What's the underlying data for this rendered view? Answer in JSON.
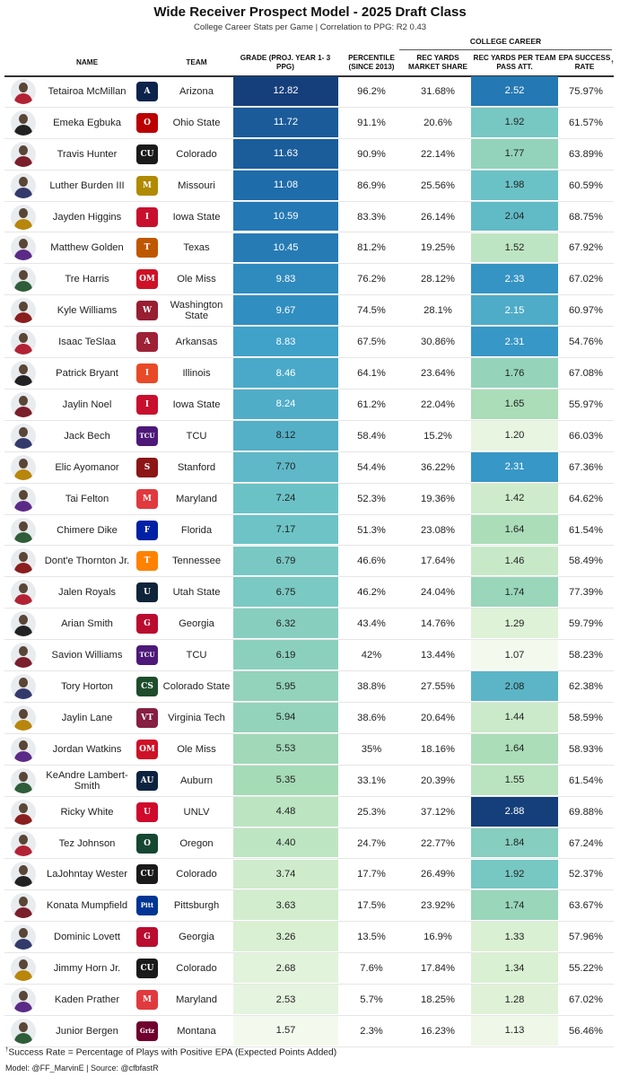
{
  "title": "Wide Receiver Prospect Model - 2025 Draft Class",
  "subtitle": "College Career Stats per Game | Correlation to PPG: R2 0.43",
  "spanner": "COLLEGE CAREER",
  "headers": {
    "name": "NAME",
    "team": "TEAM",
    "grade": "GRADE (PROJ. YEAR 1- 3 PPG)",
    "percentile": "PERCENTILE (SINCE 2013)",
    "share": "REC YARDS MARKET SHARE",
    "ypa": "REC YARDS PER TEAM PASS ATT.",
    "epa": "EPA SUCCESS RATE",
    "epa_mark": "†"
  },
  "footnote": {
    "mark": "†",
    "text": "Success Rate = Percentage of Plays with Positive EPA (Expected Points Added)"
  },
  "credit": "Model: @FF_MarvinE | Source: @cfbfastR",
  "colors": {
    "scale": [
      "#f4f9ee",
      "#d6efcf",
      "#a6dbb6",
      "#6cc3c6",
      "#3a9cc9",
      "#1f6fae",
      "#153f7a"
    ]
  },
  "chart_data": {
    "type": "table",
    "columns": [
      "NAME",
      "TEAM",
      "GRADE (PROJ. YEAR 1- 3 PPG)",
      "PERCENTILE (SINCE 2013)",
      "REC YARDS MARKET SHARE",
      "REC YARDS PER TEAM PASS ATT.",
      "EPA SUCCESS RATE"
    ],
    "rows": [
      {
        "name": "Tetairoa McMillan",
        "team": "Arizona",
        "logo": "arizona-logo",
        "logo_text": "A",
        "logo_color": "#0c234b",
        "grade": "12.82",
        "percentile": "96.2%",
        "share": "31.68%",
        "ypa": "2.52",
        "epa": "75.97%"
      },
      {
        "name": "Emeka Egbuka",
        "team": "Ohio State",
        "logo": "ohio-state-logo",
        "logo_text": "O",
        "logo_color": "#bb0000",
        "grade": "11.72",
        "percentile": "91.1%",
        "share": "20.6%",
        "ypa": "1.92",
        "epa": "61.57%"
      },
      {
        "name": "Travis Hunter",
        "team": "Colorado",
        "logo": "colorado-logo",
        "logo_text": "CU",
        "logo_color": "#1a1a1a",
        "grade": "11.63",
        "percentile": "90.9%",
        "share": "22.14%",
        "ypa": "1.77",
        "epa": "63.89%"
      },
      {
        "name": "Luther Burden III",
        "team": "Missouri",
        "logo": "missouri-logo",
        "logo_text": "M",
        "logo_color": "#b08a00",
        "grade": "11.08",
        "percentile": "86.9%",
        "share": "25.56%",
        "ypa": "1.98",
        "epa": "60.59%"
      },
      {
        "name": "Jayden Higgins",
        "team": "Iowa State",
        "logo": "iowa-state-logo",
        "logo_text": "I",
        "logo_color": "#c8102e",
        "grade": "10.59",
        "percentile": "83.3%",
        "share": "26.14%",
        "ypa": "2.04",
        "epa": "68.75%"
      },
      {
        "name": "Matthew Golden",
        "team": "Texas",
        "logo": "texas-logo",
        "logo_text": "T",
        "logo_color": "#bf5700",
        "grade": "10.45",
        "percentile": "81.2%",
        "share": "19.25%",
        "ypa": "1.52",
        "epa": "67.92%"
      },
      {
        "name": "Tre Harris",
        "team": "Ole Miss",
        "logo": "ole-miss-logo",
        "logo_text": "OM",
        "logo_color": "#ce1126",
        "grade": "9.83",
        "percentile": "76.2%",
        "share": "28.12%",
        "ypa": "2.33",
        "epa": "67.02%"
      },
      {
        "name": "Kyle Williams",
        "team": "Washington State",
        "logo": "washington-state-logo",
        "logo_text": "W",
        "logo_color": "#981e32",
        "grade": "9.67",
        "percentile": "74.5%",
        "share": "28.1%",
        "ypa": "2.15",
        "epa": "60.97%"
      },
      {
        "name": "Isaac TeSlaa",
        "team": "Arkansas",
        "logo": "arkansas-logo",
        "logo_text": "A",
        "logo_color": "#9d2235",
        "grade": "8.83",
        "percentile": "67.5%",
        "share": "30.86%",
        "ypa": "2.31",
        "epa": "54.76%"
      },
      {
        "name": "Patrick Bryant",
        "team": "Illinois",
        "logo": "illinois-logo",
        "logo_text": "I",
        "logo_color": "#e84a27",
        "grade": "8.46",
        "percentile": "64.1%",
        "share": "23.64%",
        "ypa": "1.76",
        "epa": "67.08%"
      },
      {
        "name": "Jaylin Noel",
        "team": "Iowa State",
        "logo": "iowa-state-logo",
        "logo_text": "I",
        "logo_color": "#c8102e",
        "grade": "8.24",
        "percentile": "61.2%",
        "share": "22.04%",
        "ypa": "1.65",
        "epa": "55.97%"
      },
      {
        "name": "Jack Bech",
        "team": "TCU",
        "logo": "tcu-logo",
        "logo_text": "TCU",
        "logo_color": "#4d1979",
        "grade": "8.12",
        "percentile": "58.4%",
        "share": "15.2%",
        "ypa": "1.20",
        "epa": "66.03%"
      },
      {
        "name": "Elic Ayomanor",
        "team": "Stanford",
        "logo": "stanford-logo",
        "logo_text": "S",
        "logo_color": "#8c1515",
        "grade": "7.70",
        "percentile": "54.4%",
        "share": "36.22%",
        "ypa": "2.31",
        "epa": "67.36%"
      },
      {
        "name": "Tai Felton",
        "team": "Maryland",
        "logo": "maryland-logo",
        "logo_text": "M",
        "logo_color": "#e03a3e",
        "grade": "7.24",
        "percentile": "52.3%",
        "share": "19.36%",
        "ypa": "1.42",
        "epa": "64.62%"
      },
      {
        "name": "Chimere Dike",
        "team": "Florida",
        "logo": "florida-logo",
        "logo_text": "F",
        "logo_color": "#0021a5",
        "grade": "7.17",
        "percentile": "51.3%",
        "share": "23.08%",
        "ypa": "1.64",
        "epa": "61.54%"
      },
      {
        "name": "Dont'e Thornton Jr.",
        "team": "Tennessee",
        "logo": "tennessee-logo",
        "logo_text": "T",
        "logo_color": "#ff8200",
        "grade": "6.79",
        "percentile": "46.6%",
        "share": "17.64%",
        "ypa": "1.46",
        "epa": "58.49%"
      },
      {
        "name": "Jalen Royals",
        "team": "Utah State",
        "logo": "utah-state-logo",
        "logo_text": "U",
        "logo_color": "#0f2439",
        "grade": "6.75",
        "percentile": "46.2%",
        "share": "24.04%",
        "ypa": "1.74",
        "epa": "77.39%"
      },
      {
        "name": "Arian Smith",
        "team": "Georgia",
        "logo": "georgia-logo",
        "logo_text": "G",
        "logo_color": "#ba0c2f",
        "grade": "6.32",
        "percentile": "43.4%",
        "share": "14.76%",
        "ypa": "1.29",
        "epa": "59.79%"
      },
      {
        "name": "Savion Williams",
        "team": "TCU",
        "logo": "tcu-logo",
        "logo_text": "TCU",
        "logo_color": "#4d1979",
        "grade": "6.19",
        "percentile": "42%",
        "share": "13.44%",
        "ypa": "1.07",
        "epa": "58.23%"
      },
      {
        "name": "Tory Horton",
        "team": "Colorado State",
        "logo": "colorado-state-logo",
        "logo_text": "CS",
        "logo_color": "#1e4d2b",
        "grade": "5.95",
        "percentile": "38.8%",
        "share": "27.55%",
        "ypa": "2.08",
        "epa": "62.38%"
      },
      {
        "name": "Jaylin Lane",
        "team": "Virginia Tech",
        "logo": "virginia-tech-logo",
        "logo_text": "VT",
        "logo_color": "#861f41",
        "grade": "5.94",
        "percentile": "38.6%",
        "share": "20.64%",
        "ypa": "1.44",
        "epa": "58.59%"
      },
      {
        "name": "Jordan Watkins",
        "team": "Ole Miss",
        "logo": "ole-miss-logo",
        "logo_text": "OM",
        "logo_color": "#ce1126",
        "grade": "5.53",
        "percentile": "35%",
        "share": "18.16%",
        "ypa": "1.64",
        "epa": "58.93%"
      },
      {
        "name": "KeAndre Lambert-Smith",
        "team": "Auburn",
        "logo": "auburn-logo",
        "logo_text": "AU",
        "logo_color": "#0c2340",
        "grade": "5.35",
        "percentile": "33.1%",
        "share": "20.39%",
        "ypa": "1.55",
        "epa": "61.54%"
      },
      {
        "name": "Ricky White",
        "team": "UNLV",
        "logo": "unlv-logo",
        "logo_text": "U",
        "logo_color": "#cf0a2c",
        "grade": "4.48",
        "percentile": "25.3%",
        "share": "37.12%",
        "ypa": "2.88",
        "epa": "69.88%"
      },
      {
        "name": "Tez Johnson",
        "team": "Oregon",
        "logo": "oregon-logo",
        "logo_text": "O",
        "logo_color": "#154733",
        "grade": "4.40",
        "percentile": "24.7%",
        "share": "22.77%",
        "ypa": "1.84",
        "epa": "67.24%"
      },
      {
        "name": "LaJohntay Wester",
        "team": "Colorado",
        "logo": "colorado-logo",
        "logo_text": "CU",
        "logo_color": "#1a1a1a",
        "grade": "3.74",
        "percentile": "17.7%",
        "share": "26.49%",
        "ypa": "1.92",
        "epa": "52.37%"
      },
      {
        "name": "Konata Mumpfield",
        "team": "Pittsburgh",
        "logo": "pittsburgh-logo",
        "logo_text": "Pitt",
        "logo_color": "#003594",
        "grade": "3.63",
        "percentile": "17.5%",
        "share": "23.92%",
        "ypa": "1.74",
        "epa": "63.67%"
      },
      {
        "name": "Dominic Lovett",
        "team": "Georgia",
        "logo": "georgia-logo",
        "logo_text": "G",
        "logo_color": "#ba0c2f",
        "grade": "3.26",
        "percentile": "13.5%",
        "share": "16.9%",
        "ypa": "1.33",
        "epa": "57.96%"
      },
      {
        "name": "Jimmy Horn Jr.",
        "team": "Colorado",
        "logo": "colorado-logo",
        "logo_text": "CU",
        "logo_color": "#1a1a1a",
        "grade": "2.68",
        "percentile": "7.6%",
        "share": "17.84%",
        "ypa": "1.34",
        "epa": "55.22%"
      },
      {
        "name": "Kaden Prather",
        "team": "Maryland",
        "logo": "maryland-logo",
        "logo_text": "M",
        "logo_color": "#e03a3e",
        "grade": "2.53",
        "percentile": "5.7%",
        "share": "18.25%",
        "ypa": "1.28",
        "epa": "67.02%"
      },
      {
        "name": "Junior Bergen",
        "team": "Montana",
        "logo": "montana-logo",
        "logo_text": "Griz",
        "logo_color": "#70002e",
        "grade": "1.57",
        "percentile": "2.3%",
        "share": "16.23%",
        "ypa": "1.13",
        "epa": "56.46%"
      }
    ]
  }
}
